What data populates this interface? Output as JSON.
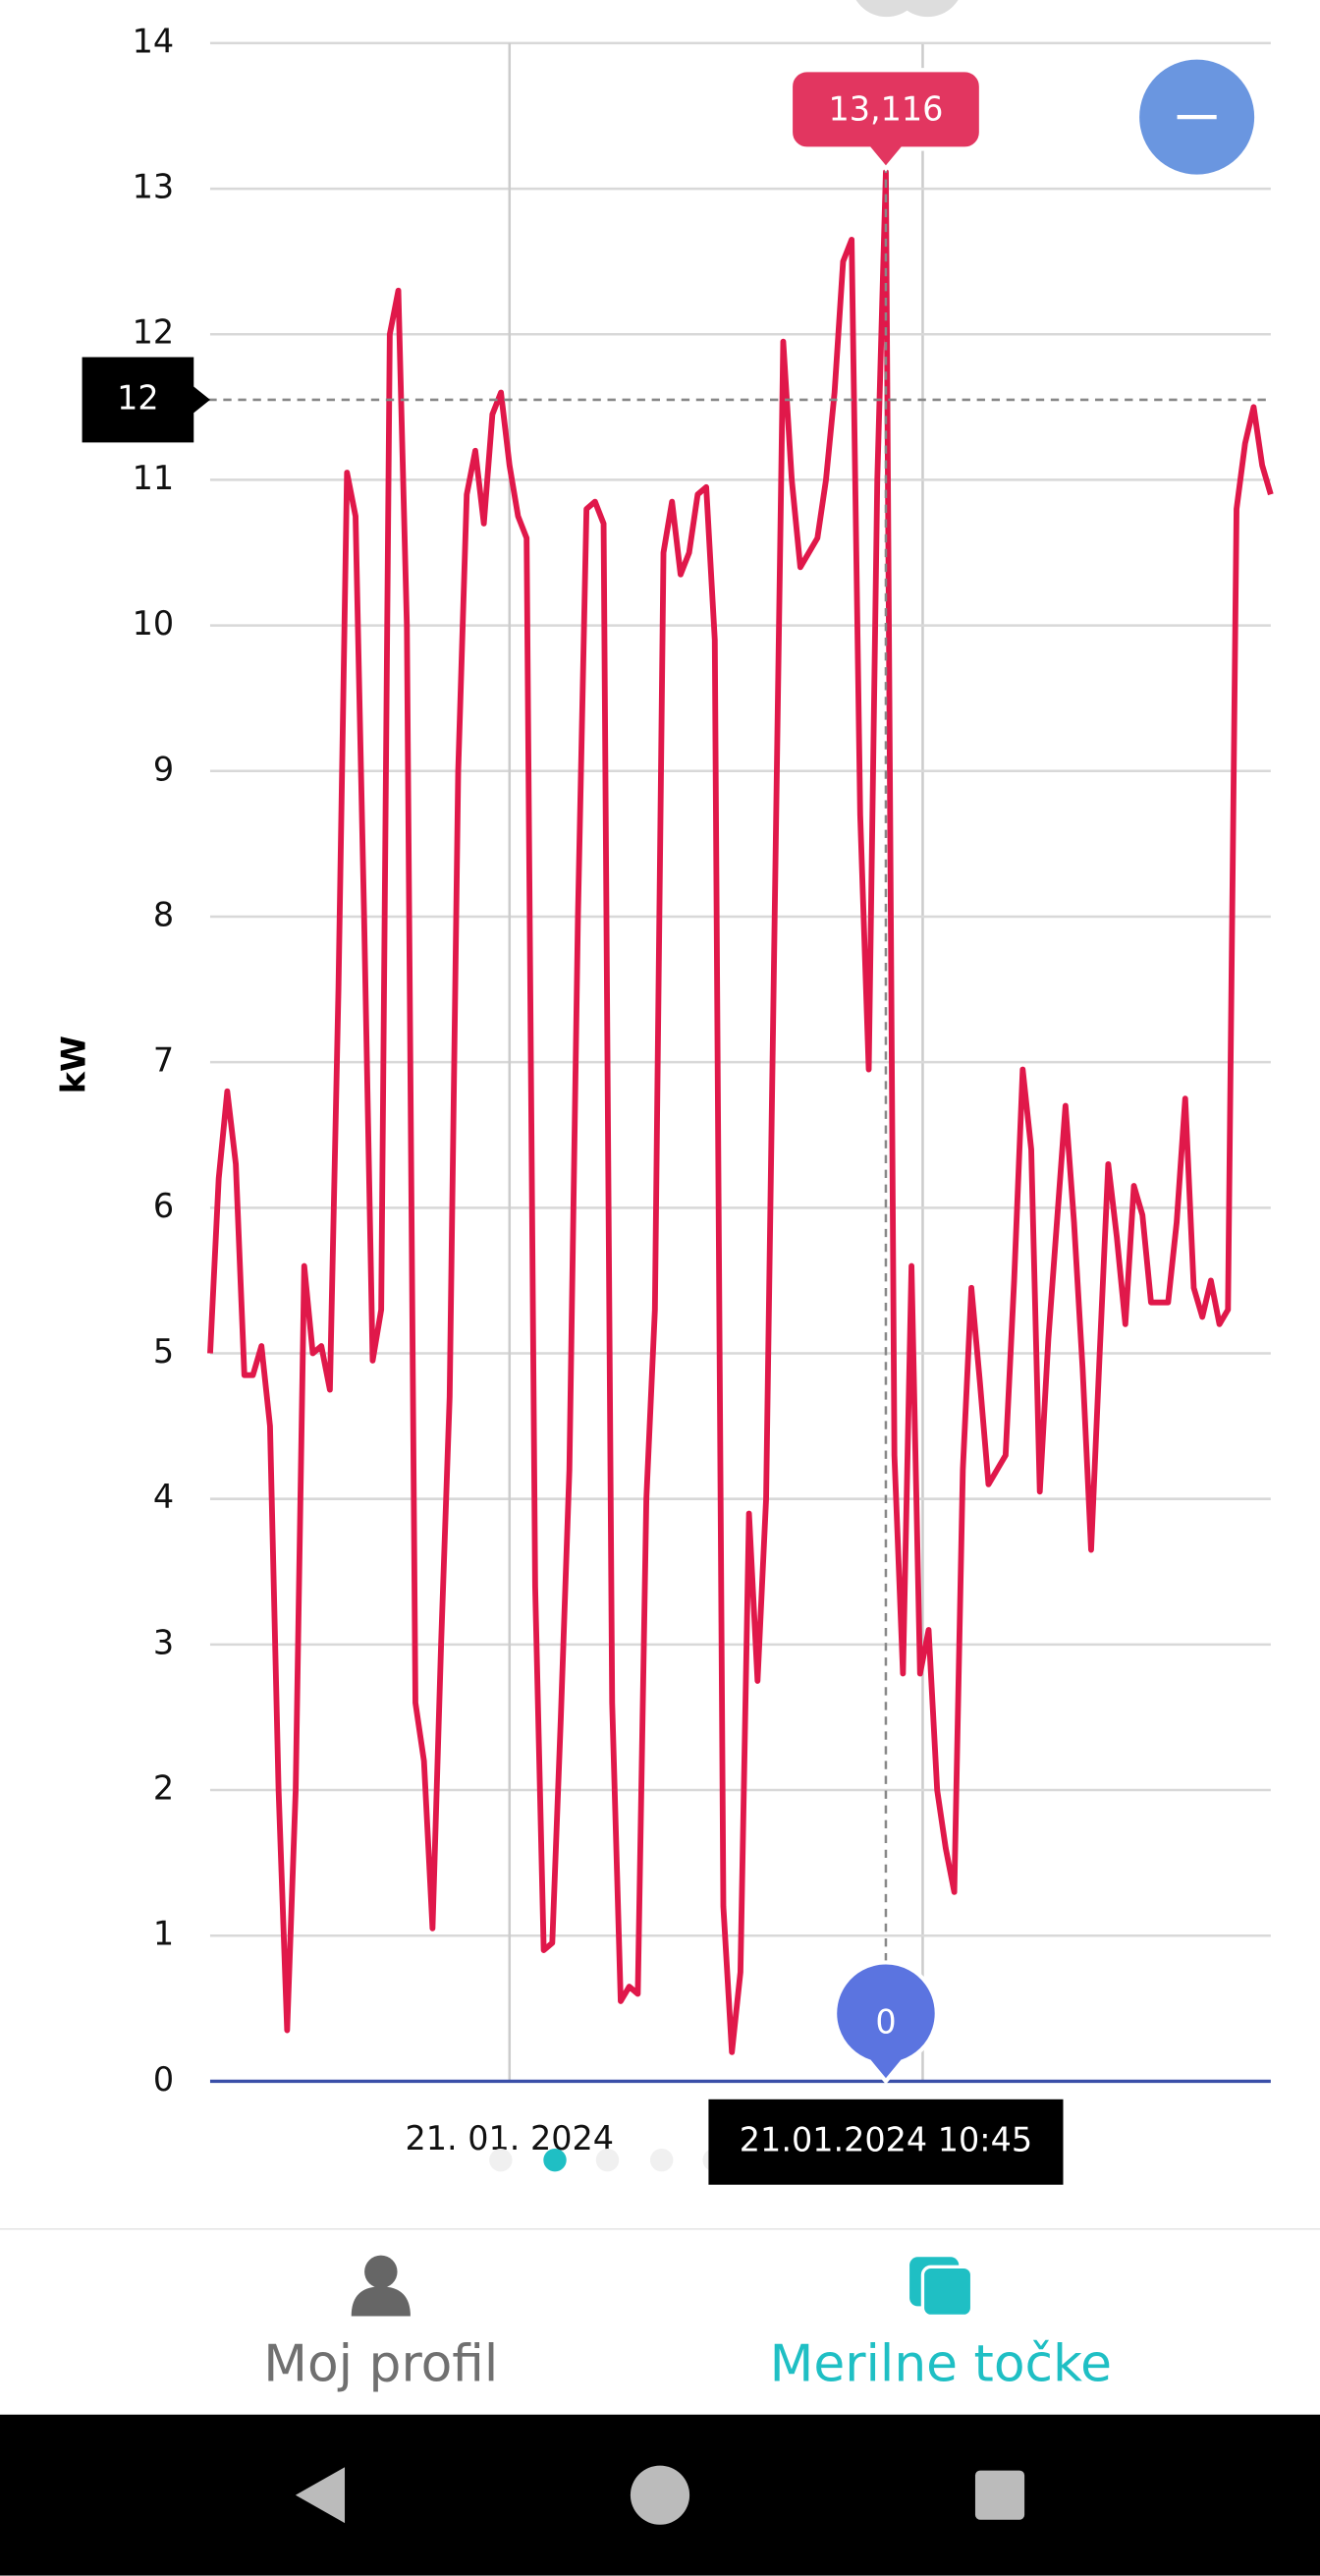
{
  "chart_data": {
    "type": "line",
    "y_label": "kW",
    "ylim": [
      0,
      14
    ],
    "yticks": [
      0,
      1,
      2,
      3,
      4,
      5,
      6,
      7,
      8,
      9,
      10,
      11,
      12,
      13,
      14
    ],
    "grid": true,
    "categories": [
      null,
      null,
      null,
      null,
      null,
      null,
      null,
      null,
      null,
      null,
      null,
      null,
      null,
      null,
      null,
      null,
      null,
      null,
      null,
      null,
      null,
      null,
      null,
      null,
      null,
      null,
      null,
      null,
      null,
      null,
      null,
      null,
      null,
      null,
      null,
      "21. 01. 2024",
      null,
      null,
      null,
      null,
      null,
      null,
      null,
      null,
      null,
      null,
      null,
      null,
      null,
      null,
      null,
      null,
      null,
      null,
      null,
      null,
      null,
      null,
      null,
      null,
      null,
      null,
      null,
      null,
      null,
      null,
      null,
      null,
      null,
      null,
      null,
      null,
      null,
      null,
      null,
      null,
      null,
      null,
      null,
      null,
      null,
      null,
      null,
      null,
      null,
      null,
      null,
      null,
      null,
      null,
      null,
      null,
      null,
      null,
      null,
      null,
      null,
      null,
      null,
      null,
      null,
      null,
      null,
      null,
      null,
      null,
      null,
      null,
      null,
      null,
      null,
      null,
      null,
      null,
      null,
      null,
      null,
      null,
      null,
      null,
      null,
      null,
      null,
      null,
      null
    ],
    "series": [
      {
        "color": "#e0184a",
        "values": [
          5.0,
          6.2,
          6.8,
          6.3,
          4.85,
          4.85,
          5.05,
          4.5,
          2.0,
          0.35,
          2.0,
          5.6,
          5.0,
          5.05,
          4.75,
          7.5,
          11.05,
          10.75,
          8.0,
          4.95,
          5.3,
          12.0,
          12.3,
          10.0,
          2.6,
          2.2,
          1.05,
          3.0,
          4.7,
          9.0,
          10.9,
          11.2,
          10.7,
          11.45,
          11.6,
          11.1,
          10.75,
          10.6,
          3.4,
          0.9,
          0.95,
          2.5,
          4.2,
          8.0,
          10.8,
          10.85,
          10.7,
          2.6,
          0.55,
          0.65,
          0.6,
          4.0,
          5.3,
          10.5,
          10.85,
          10.35,
          10.5,
          10.9,
          10.95,
          9.9,
          1.2,
          0.2,
          0.75,
          3.9,
          2.75,
          4.0,
          8.0,
          11.95,
          11.0,
          10.4,
          10.5,
          10.6,
          11.0,
          11.6,
          12.5,
          12.65,
          8.7,
          6.95,
          11.0,
          13.116,
          4.3,
          2.8,
          5.6,
          2.8,
          3.1,
          2.0,
          1.6,
          1.3,
          4.2,
          5.45,
          4.8,
          4.1,
          4.2,
          4.3,
          5.5,
          6.95,
          6.4,
          4.05,
          5.1,
          5.9,
          6.7,
          5.9,
          4.9,
          3.65,
          5.0,
          6.3,
          5.8,
          5.2,
          6.15,
          5.95,
          5.35,
          5.35,
          5.35,
          5.9,
          6.75,
          5.45,
          5.25,
          5.5,
          5.2,
          5.3,
          10.8,
          11.25,
          11.5,
          11.1,
          10.9
        ]
      }
    ],
    "crosshair": {
      "x_label": "21.01.2024 10:45",
      "y": {
        "value": 11.55,
        "label": "12"
      },
      "point": {
        "value": 13.116,
        "label": "13,116"
      },
      "base": 0
    }
  },
  "nav": {
    "items": [
      "Moj profil",
      "Merilne točke"
    ]
  }
}
